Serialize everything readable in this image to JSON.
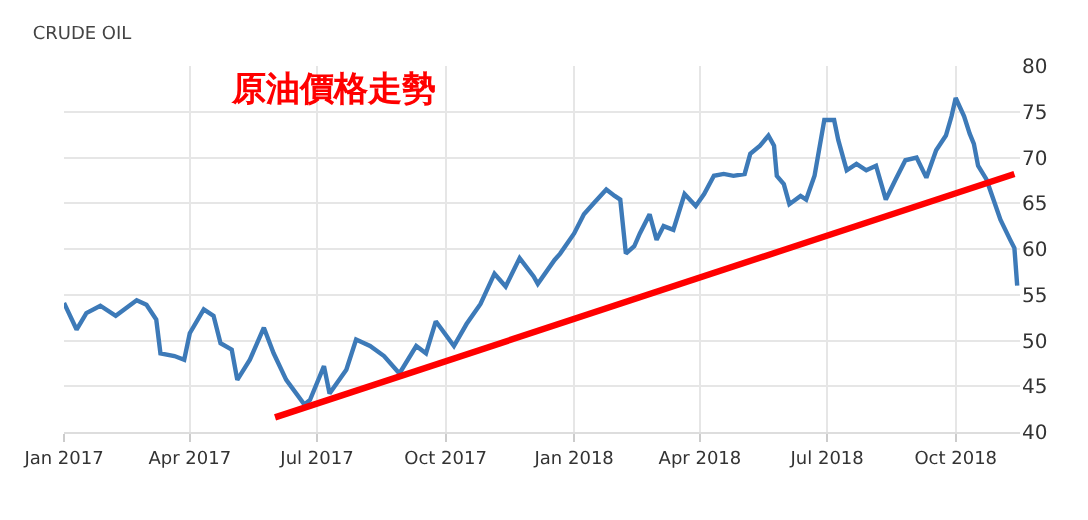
{
  "chart_data": {
    "type": "line",
    "title": "CRUDE OIL",
    "annotations": [
      "原油價格走勢"
    ],
    "series": [
      {
        "color": "#3d7ab8",
        "x": [
          "2017-01-01",
          "2017-01-10",
          "2017-01-17",
          "2017-01-27",
          "2017-02-07",
          "2017-02-22",
          "2017-03-01",
          "2017-03-08",
          "2017-03-11",
          "2017-03-21",
          "2017-03-28",
          "2017-04-01",
          "2017-04-11",
          "2017-04-18",
          "2017-04-23",
          "2017-05-01",
          "2017-05-05",
          "2017-05-14",
          "2017-05-24",
          "2017-05-31",
          "2017-06-09",
          "2017-06-22",
          "2017-06-26",
          "2017-07-06",
          "2017-07-10",
          "2017-07-22",
          "2017-07-29",
          "2017-08-08",
          "2017-08-18",
          "2017-08-29",
          "2017-09-10",
          "2017-09-17",
          "2017-09-24",
          "2017-10-07",
          "2017-10-16",
          "2017-10-26",
          "2017-11-05",
          "2017-11-13",
          "2017-11-23",
          "2017-12-03",
          "2017-12-06",
          "2017-12-18",
          "2017-12-22",
          "2018-01-01",
          "2018-01-08",
          "2018-01-15",
          "2018-01-24",
          "2018-01-30",
          "2018-02-03",
          "2018-02-07",
          "2018-02-13",
          "2018-02-17",
          "2018-02-24",
          "2018-03-01",
          "2018-03-06",
          "2018-03-13",
          "2018-03-21",
          "2018-03-29",
          "2018-04-04",
          "2018-04-11",
          "2018-04-18",
          "2018-04-25",
          "2018-05-03",
          "2018-05-07",
          "2018-05-14",
          "2018-05-20",
          "2018-05-24",
          "2018-05-26",
          "2018-05-31",
          "2018-06-04",
          "2018-06-12",
          "2018-06-16",
          "2018-06-22",
          "2018-06-29",
          "2018-07-06",
          "2018-07-09",
          "2018-07-15",
          "2018-07-22",
          "2018-07-29",
          "2018-08-05",
          "2018-08-12",
          "2018-08-19",
          "2018-08-26",
          "2018-09-03",
          "2018-09-10",
          "2018-09-17",
          "2018-09-24",
          "2018-09-28",
          "2018-10-01",
          "2018-10-07",
          "2018-10-11",
          "2018-10-14",
          "2018-10-17",
          "2018-10-23",
          "2018-10-28",
          "2018-11-02",
          "2018-11-09",
          "2018-11-12",
          "2018-11-14"
        ],
        "values": [
          54.1,
          51.2,
          53,
          53.8,
          52.7,
          54.4,
          53.9,
          52.3,
          48.6,
          48.3,
          47.9,
          50.8,
          53.4,
          52.7,
          49.7,
          49,
          45.7,
          47.9,
          51.4,
          48.6,
          45.7,
          43,
          43.5,
          47.2,
          44.2,
          46.8,
          50.1,
          49.4,
          48.3,
          46.4,
          49.4,
          48.6,
          52.1,
          49.4,
          51.8,
          54,
          57.3,
          55.9,
          59,
          57,
          56.2,
          58.8,
          59.5,
          61.7,
          63.8,
          65,
          66.5,
          65.8,
          65.4,
          59.5,
          60.3,
          61.7,
          63.8,
          61,
          62.5,
          62.1,
          66,
          64.7,
          66,
          68,
          68.2,
          68,
          68.2,
          70.4,
          71.3,
          72.4,
          71.3,
          68,
          67.1,
          64.9,
          65.8,
          65.4,
          68,
          74.1,
          74.1,
          71.9,
          68.6,
          69.3,
          68.6,
          69.1,
          65.4,
          67.6,
          69.7,
          70,
          67.8,
          70.8,
          72.4,
          74.5,
          76.5,
          74.5,
          72.6,
          71.5,
          69.1,
          67.6,
          65.4,
          63.2,
          61,
          60.1,
          56
        ]
      },
      {
        "color": "#ff0000",
        "x": [
          "2017-06-01",
          "2018-11-12"
        ],
        "values": [
          41.6,
          68.2
        ]
      }
    ],
    "xlim": [
      "2017-01-01",
      "2018-11-16"
    ],
    "xticks": [
      {
        "value": "2017-01-01",
        "label": "Jan 2017"
      },
      {
        "value": "2017-04-01",
        "label": "Apr 2017"
      },
      {
        "value": "2017-07-01",
        "label": "Jul 2017"
      },
      {
        "value": "2017-10-01",
        "label": "Oct 2017"
      },
      {
        "value": "2018-01-01",
        "label": "Jan 2018"
      },
      {
        "value": "2018-04-01",
        "label": "Apr 2018"
      },
      {
        "value": "2018-07-01",
        "label": "Jul 2018"
      },
      {
        "value": "2018-10-01",
        "label": "Oct 2018"
      }
    ],
    "ylim": [
      40,
      80
    ],
    "yticks": [
      40,
      45,
      50,
      55,
      60,
      65,
      70,
      75,
      80
    ],
    "grid": true
  }
}
